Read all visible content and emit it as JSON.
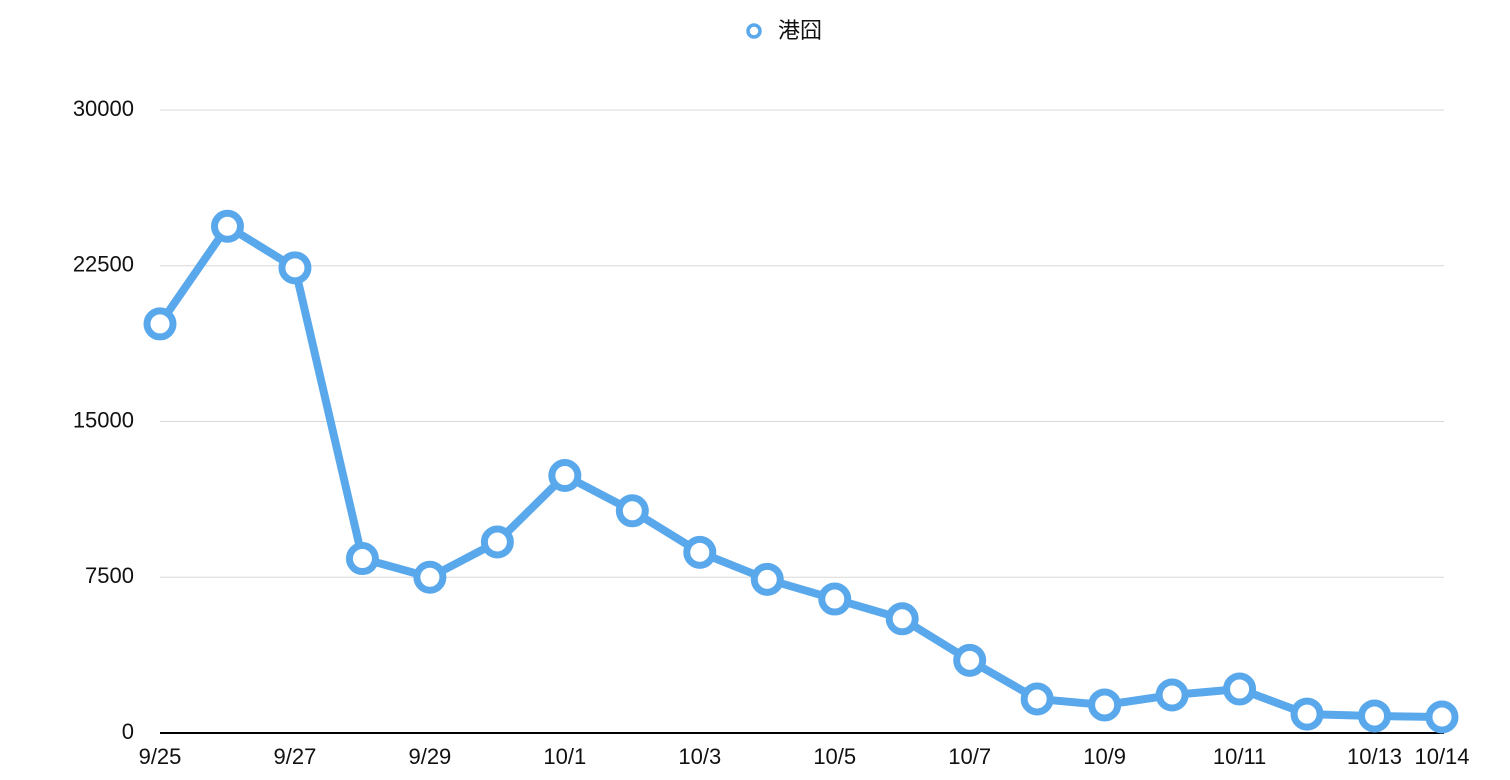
{
  "chart_data": {
    "type": "line",
    "categories": [
      "9/25",
      null,
      "9/27",
      null,
      "9/29",
      null,
      "10/1",
      null,
      "10/3",
      null,
      "10/5",
      null,
      "10/7",
      null,
      "10/9",
      null,
      "10/11",
      null,
      "10/13",
      "10/14"
    ],
    "series": [
      {
        "name": "港囧",
        "color": "#5aa8ec",
        "values": [
          19700,
          24400,
          22400,
          8400,
          7500,
          9200,
          12400,
          10700,
          8700,
          7400,
          6450,
          5500,
          3500,
          1640,
          1350,
          1830,
          2120,
          910,
          820,
          770
        ]
      }
    ],
    "ylim": [
      0,
      30000
    ],
    "yticks": [
      0,
      7500,
      15000,
      22500,
      30000
    ],
    "grid": true,
    "legend": "top"
  }
}
